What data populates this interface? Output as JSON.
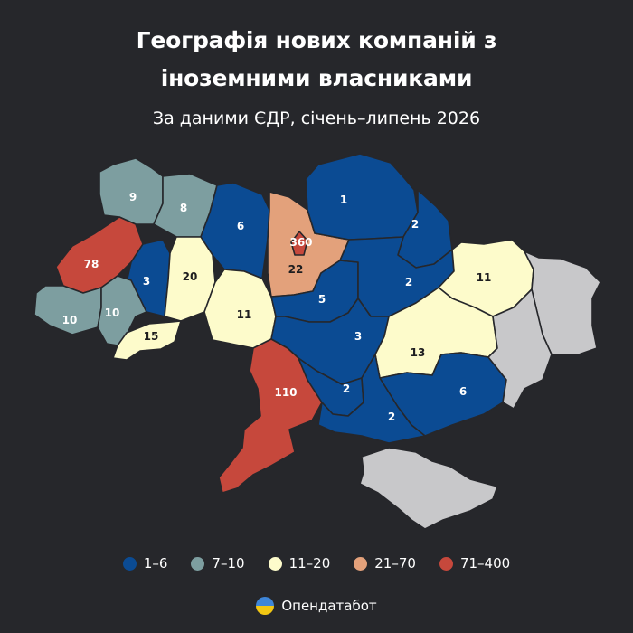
{
  "title_line1": "Географія нових компаній з",
  "title_line2": "іноземними власниками",
  "subtitle": "За даними ЄДР, січень–липень 2026",
  "colors": {
    "background": "#26272b",
    "1-6": "#0b4b93",
    "7-10": "#7d9ea0",
    "11-20": "#fdfbcb",
    "21-70": "#e3a17b",
    "71-400": "#c6483c",
    "no_data": "#c8c8ca"
  },
  "legend": [
    {
      "label": "1–6",
      "class": "1-6"
    },
    {
      "label": "7–10",
      "class": "7-10"
    },
    {
      "label": "11–20",
      "class": "11-20"
    },
    {
      "label": "21–70",
      "class": "21-70"
    },
    {
      "label": "71–400",
      "class": "71-400"
    }
  ],
  "regions": [
    {
      "id": "volyn",
      "value": "9",
      "class": "7-10"
    },
    {
      "id": "rivne",
      "value": "8",
      "class": "7-10"
    },
    {
      "id": "zhytomyr",
      "value": "6",
      "class": "1-6"
    },
    {
      "id": "kyiv-oblast",
      "value": "22",
      "class": "21-70"
    },
    {
      "id": "kyiv-city",
      "value": "360",
      "class": "71-400"
    },
    {
      "id": "chernihiv",
      "value": "1",
      "class": "1-6"
    },
    {
      "id": "sumy",
      "value": "2",
      "class": "1-6"
    },
    {
      "id": "lviv",
      "value": "78",
      "class": "71-400"
    },
    {
      "id": "ternopil",
      "value": "3",
      "class": "1-6"
    },
    {
      "id": "khmelnytskyi",
      "value": "20",
      "class": "11-20"
    },
    {
      "id": "vinnytsia",
      "value": "11",
      "class": "11-20"
    },
    {
      "id": "cherkasy",
      "value": "5",
      "class": "1-6"
    },
    {
      "id": "poltava",
      "value": "2",
      "class": "1-6"
    },
    {
      "id": "kharkiv",
      "value": "11",
      "class": "11-20"
    },
    {
      "id": "zakarpattia",
      "value": "10",
      "class": "7-10"
    },
    {
      "id": "ivano-frankivsk",
      "value": "10",
      "class": "7-10"
    },
    {
      "id": "chernivtsi",
      "value": "15",
      "class": "11-20"
    },
    {
      "id": "kirovohrad",
      "value": "3",
      "class": "1-6"
    },
    {
      "id": "dnipropetrovsk",
      "value": "13",
      "class": "11-20"
    },
    {
      "id": "odesa",
      "value": "110",
      "class": "71-400"
    },
    {
      "id": "mykolaiv",
      "value": "2",
      "class": "1-6"
    },
    {
      "id": "zaporizhzhia",
      "value": "6",
      "class": "1-6"
    },
    {
      "id": "kherson",
      "value": "2",
      "class": "1-6"
    },
    {
      "id": "luhansk",
      "value": "",
      "class": "no_data"
    },
    {
      "id": "donetsk",
      "value": "",
      "class": "no_data"
    },
    {
      "id": "crimea",
      "value": "",
      "class": "no_data"
    }
  ],
  "brand": "Опендатабот"
}
